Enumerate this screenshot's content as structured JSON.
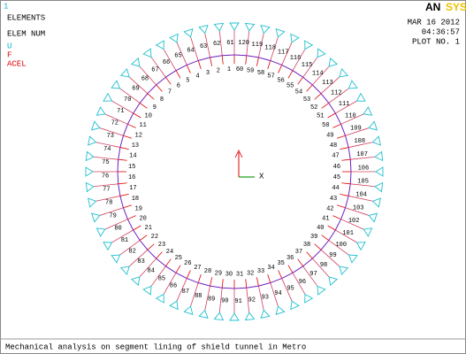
{
  "header": {
    "window_number": "1",
    "plot_type": "ELEMENTS",
    "numbering": "ELEM NUM",
    "legend": [
      "U",
      "F",
      "ACEL"
    ],
    "logo_dark": "AN",
    "logo_light": "SYS",
    "date": "MAR 16 2012",
    "time": "04:36:57",
    "plot_no": "PLOT NO.   1"
  },
  "model": {
    "inner_labels": [
      1,
      2,
      3,
      4,
      5,
      6,
      7,
      8,
      9,
      10,
      11,
      12,
      13,
      14,
      15,
      16,
      17,
      18,
      19,
      20,
      21,
      22,
      23,
      24,
      25,
      26,
      27,
      28,
      29,
      30,
      31,
      32,
      33,
      34,
      35,
      36,
      37,
      38,
      39,
      40,
      41,
      42,
      43,
      44,
      45,
      46,
      47,
      48,
      49,
      50,
      51,
      52,
      53,
      54,
      55,
      56,
      57,
      58,
      59,
      60
    ],
    "outer_labels": [
      61,
      62,
      63,
      64,
      65,
      66,
      67,
      68,
      69,
      70,
      71,
      72,
      73,
      74,
      75,
      76,
      77,
      78,
      79,
      80,
      81,
      82,
      83,
      84,
      85,
      86,
      87,
      88,
      89,
      90,
      91,
      92,
      93,
      94,
      95,
      96,
      97,
      98,
      99,
      100,
      101,
      102,
      103,
      104,
      105,
      106,
      107,
      108,
      109,
      110,
      111,
      112,
      113,
      114,
      115,
      116,
      117,
      118,
      119,
      120
    ],
    "axis_label": "X"
  },
  "caption": "Mechanical analysis on segment lining of shield tunnel in Metro"
}
